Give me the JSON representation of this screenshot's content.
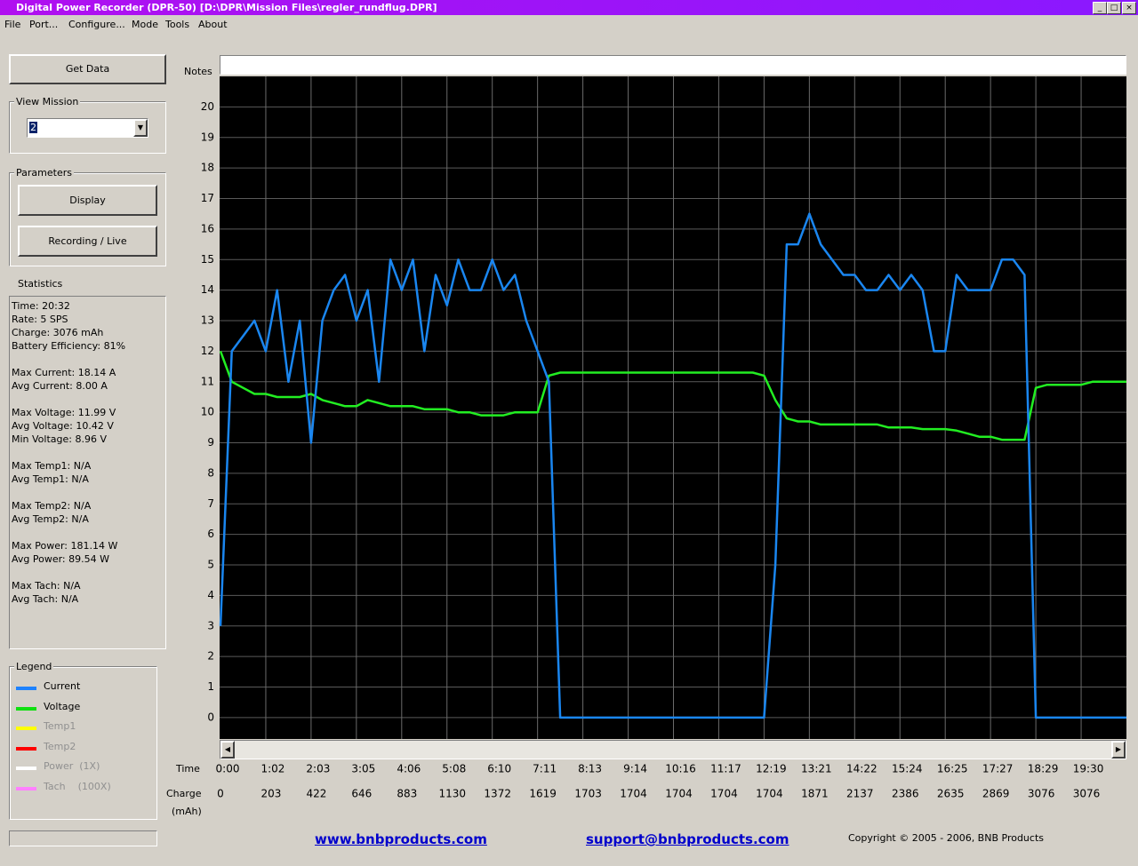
{
  "window": {
    "title": "Digital Power Recorder (DPR-50) [D:\\DPR\\Mission Files\\regler_rundflug.DPR]"
  },
  "menu": [
    "File",
    "Port...",
    "Configure...",
    "Mode",
    "Tools",
    "About"
  ],
  "sidebar": {
    "get_data": "Get Data",
    "view_mission": {
      "label": "View Mission",
      "value": "2"
    },
    "parameters": {
      "label": "Parameters",
      "buttons": [
        "Display",
        "Recording / Live"
      ]
    },
    "statistics": {
      "label": "Statistics",
      "groups": [
        [
          "Time: 20:32",
          "Rate: 5 SPS",
          "Charge: 3076 mAh",
          "Battery Efficiency: 81%"
        ],
        [
          "Max Current: 18.14 A",
          "Avg Current: 8.00 A"
        ],
        [
          "Max Voltage: 11.99 V",
          "Avg Voltage: 10.42 V",
          "Min Voltage: 8.96 V"
        ],
        [
          "Max Temp1: N/A",
          "Avg Temp1: N/A"
        ],
        [
          "Max Temp2: N/A",
          "Avg Temp2: N/A"
        ],
        [
          "Max Power: 181.14 W",
          "Avg Power: 89.54 W"
        ],
        [
          "Max Tach: N/A",
          "Avg Tach: N/A"
        ]
      ]
    },
    "legend": {
      "label": "Legend",
      "entries": [
        {
          "name": "Current",
          "color": "#1e82ff",
          "active": true
        },
        {
          "name": "Voltage",
          "color": "#10e010",
          "active": true
        },
        {
          "name": "Temp1",
          "color": "#ffff00",
          "active": false
        },
        {
          "name": "Temp2",
          "color": "#ff0000",
          "active": false
        },
        {
          "name": "Power  (1X)",
          "color": "#ffffff",
          "active": false
        },
        {
          "name": "Tach    (100X)",
          "color": "#ff80ff",
          "active": false
        }
      ]
    }
  },
  "chart_data": {
    "type": "line",
    "notes_label": "Notes",
    "x_label": "Time",
    "charge_label": "Charge",
    "charge_unit": "(mAh)",
    "categories": [
      "0:00",
      null,
      null,
      null,
      "1:02",
      null,
      null,
      null,
      "2:03",
      null,
      null,
      null,
      "3:05",
      null,
      null,
      null,
      "4:06",
      null,
      null,
      null,
      "5:08",
      null,
      null,
      null,
      "6:10",
      null,
      null,
      null,
      "7:11",
      null,
      null,
      null,
      "8:13",
      null,
      null,
      null,
      "9:14",
      null,
      null,
      null,
      "10:16",
      null,
      null,
      null,
      "11:17",
      null,
      null,
      null,
      "12:19",
      null,
      null,
      null,
      "13:21",
      null,
      null,
      null,
      "14:22",
      null,
      null,
      null,
      "15:24",
      null,
      null,
      null,
      "16:25",
      null,
      null,
      null,
      "17:27",
      null,
      null,
      null,
      "18:29",
      null,
      null,
      null,
      "19:30",
      null,
      null,
      null,
      null
    ],
    "charge": [
      0,
      null,
      null,
      null,
      203,
      null,
      null,
      null,
      422,
      null,
      null,
      null,
      646,
      null,
      null,
      null,
      883,
      null,
      null,
      null,
      1130,
      null,
      null,
      null,
      1372,
      null,
      null,
      null,
      1619,
      null,
      null,
      null,
      1703,
      null,
      null,
      null,
      1704,
      null,
      null,
      null,
      1704,
      null,
      null,
      null,
      1704,
      null,
      null,
      null,
      1704,
      null,
      null,
      null,
      1871,
      null,
      null,
      null,
      2137,
      null,
      null,
      null,
      2386,
      null,
      null,
      null,
      2635,
      null,
      null,
      null,
      2869,
      null,
      null,
      null,
      3076,
      null,
      null,
      null,
      3076,
      null,
      null,
      null,
      null
    ],
    "series": [
      {
        "name": "Current",
        "color": "#1a86f0",
        "values": [
          3,
          12,
          12.5,
          13,
          12,
          14,
          11,
          13,
          9,
          13,
          14,
          14.5,
          13,
          14,
          11,
          15,
          14,
          15,
          12,
          14.5,
          13.5,
          15,
          14,
          14,
          15,
          14,
          14.5,
          13,
          12,
          11,
          0,
          0,
          0,
          0,
          0,
          0,
          0,
          0,
          0,
          0,
          0,
          0,
          0,
          0,
          0,
          0,
          0,
          0,
          0,
          5,
          15.5,
          15.5,
          16.5,
          15.5,
          15,
          14.5,
          14.5,
          14,
          14,
          14.5,
          14,
          14.5,
          14,
          12,
          12,
          14.5,
          14,
          14,
          14,
          15,
          15,
          14.5,
          0,
          0,
          0,
          0,
          0,
          0,
          0,
          0,
          0
        ]
      },
      {
        "name": "Voltage",
        "color": "#22ee22",
        "values": [
          12,
          11,
          10.8,
          10.6,
          10.6,
          10.5,
          10.5,
          10.5,
          10.6,
          10.4,
          10.3,
          10.2,
          10.2,
          10.4,
          10.3,
          10.2,
          10.2,
          10.2,
          10.1,
          10.1,
          10.1,
          10,
          10,
          9.9,
          9.9,
          9.9,
          10,
          10,
          10,
          11.2,
          11.3,
          11.3,
          11.3,
          11.3,
          11.3,
          11.3,
          11.3,
          11.3,
          11.3,
          11.3,
          11.3,
          11.3,
          11.3,
          11.3,
          11.3,
          11.3,
          11.3,
          11.3,
          11.2,
          10.4,
          9.8,
          9.7,
          9.7,
          9.6,
          9.6,
          9.6,
          9.6,
          9.6,
          9.6,
          9.5,
          9.5,
          9.5,
          9.45,
          9.45,
          9.45,
          9.4,
          9.3,
          9.2,
          9.2,
          9.1,
          9.1,
          9.1,
          10.8,
          10.9,
          10.9,
          10.9,
          10.9,
          11,
          11,
          11,
          11
        ]
      }
    ],
    "ylim": [
      -0.7,
      21
    ],
    "yticks": [
      0,
      1,
      2,
      3,
      4,
      5,
      6,
      7,
      8,
      9,
      10,
      11,
      12,
      13,
      14,
      15,
      16,
      17,
      18,
      19,
      20
    ],
    "grid": true
  },
  "footer": {
    "links": [
      "www.bnbproducts.com",
      "support@bnbproducts.com"
    ],
    "copyright": "Copyright © 2005 - 2006, BNB Products"
  }
}
